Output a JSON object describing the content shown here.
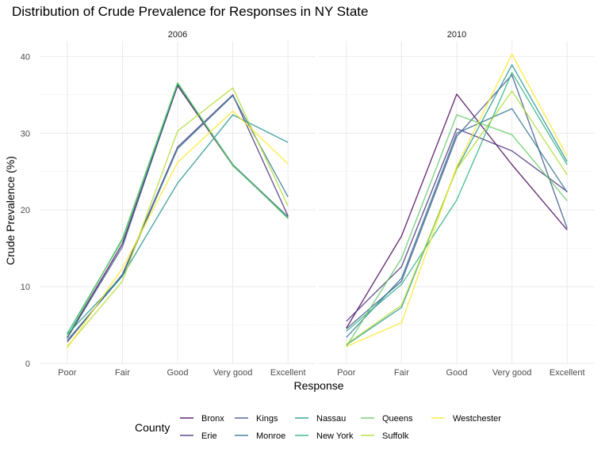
{
  "chart_data": {
    "type": "line",
    "title": "Distribution of Crude Prevalence for Responses in NY State",
    "xlabel": "Response",
    "ylabel": "Crude Prevalence (%)",
    "categories": [
      "Poor",
      "Fair",
      "Good",
      "Very good",
      "Excellent"
    ],
    "ylim": [
      0,
      42
    ],
    "yticks": [
      0,
      10,
      20,
      30,
      40
    ],
    "grid": true,
    "legend": {
      "title": "County",
      "position": "bottom",
      "entries": [
        "Bronx",
        "Erie",
        "Kings",
        "Monroe",
        "Nassau",
        "New York",
        "Queens",
        "Suffolk",
        "Westchester"
      ]
    },
    "colors": {
      "Bronx": "#440154",
      "Erie": "#472d7b",
      "Kings": "#3b528b",
      "Monroe": "#2c728e",
      "Nassau": "#21918c",
      "New York": "#28ae80",
      "Queens": "#5ec962",
      "Suffolk": "#addc30",
      "Westchester": "#fde725"
    },
    "panels": [
      {
        "label": "2006",
        "series": [
          {
            "name": "Bronx",
            "values": [
              3.4,
              15.6,
              36.2,
              25.8,
              19.0
            ]
          },
          {
            "name": "Erie",
            "values": [
              2.8,
              11.6,
              28.2,
              35.0,
              19.2
            ]
          },
          {
            "name": "Kings",
            "values": [
              3.3,
              15.2,
              36.4,
              25.9,
              19.1
            ]
          },
          {
            "name": "Monroe",
            "values": [
              3.0,
              11.4,
              28.0,
              34.9,
              21.7
            ]
          },
          {
            "name": "Nassau",
            "values": [
              3.8,
              11.4,
              23.5,
              32.4,
              28.8
            ]
          },
          {
            "name": "New York",
            "values": [
              3.9,
              16.1,
              36.5,
              25.9,
              18.9
            ]
          },
          {
            "name": "Queens",
            "values": [
              3.5,
              16.3,
              36.6,
              25.8,
              19.0
            ]
          },
          {
            "name": "Suffolk",
            "values": [
              2.2,
              10.7,
              30.3,
              35.9,
              20.5
            ]
          },
          {
            "name": "Westchester",
            "values": [
              2.0,
              12.4,
              26.2,
              32.9,
              26.0
            ]
          }
        ]
      },
      {
        "label": "2010",
        "series": [
          {
            "name": "Bronx",
            "values": [
              4.6,
              16.6,
              35.1,
              25.9,
              17.4
            ]
          },
          {
            "name": "Erie",
            "values": [
              5.5,
              12.6,
              30.6,
              27.7,
              22.4
            ]
          },
          {
            "name": "Kings",
            "values": [
              4.5,
              10.7,
              29.6,
              37.6,
              17.6
            ]
          },
          {
            "name": "Monroe",
            "values": [
              3.4,
              11.1,
              30.0,
              33.2,
              22.3
            ]
          },
          {
            "name": "Nassau",
            "values": [
              2.4,
              7.3,
              25.4,
              38.9,
              26.3
            ]
          },
          {
            "name": "New York",
            "values": [
              4.2,
              10.3,
              21.3,
              37.9,
              25.9
            ]
          },
          {
            "name": "Queens",
            "values": [
              2.2,
              13.7,
              32.4,
              29.8,
              21.2
            ]
          },
          {
            "name": "Suffolk",
            "values": [
              2.5,
              7.6,
              25.3,
              35.5,
              24.6
            ]
          },
          {
            "name": "Westchester",
            "values": [
              2.2,
              5.3,
              25.7,
              40.3,
              27.0
            ]
          }
        ]
      }
    ]
  }
}
